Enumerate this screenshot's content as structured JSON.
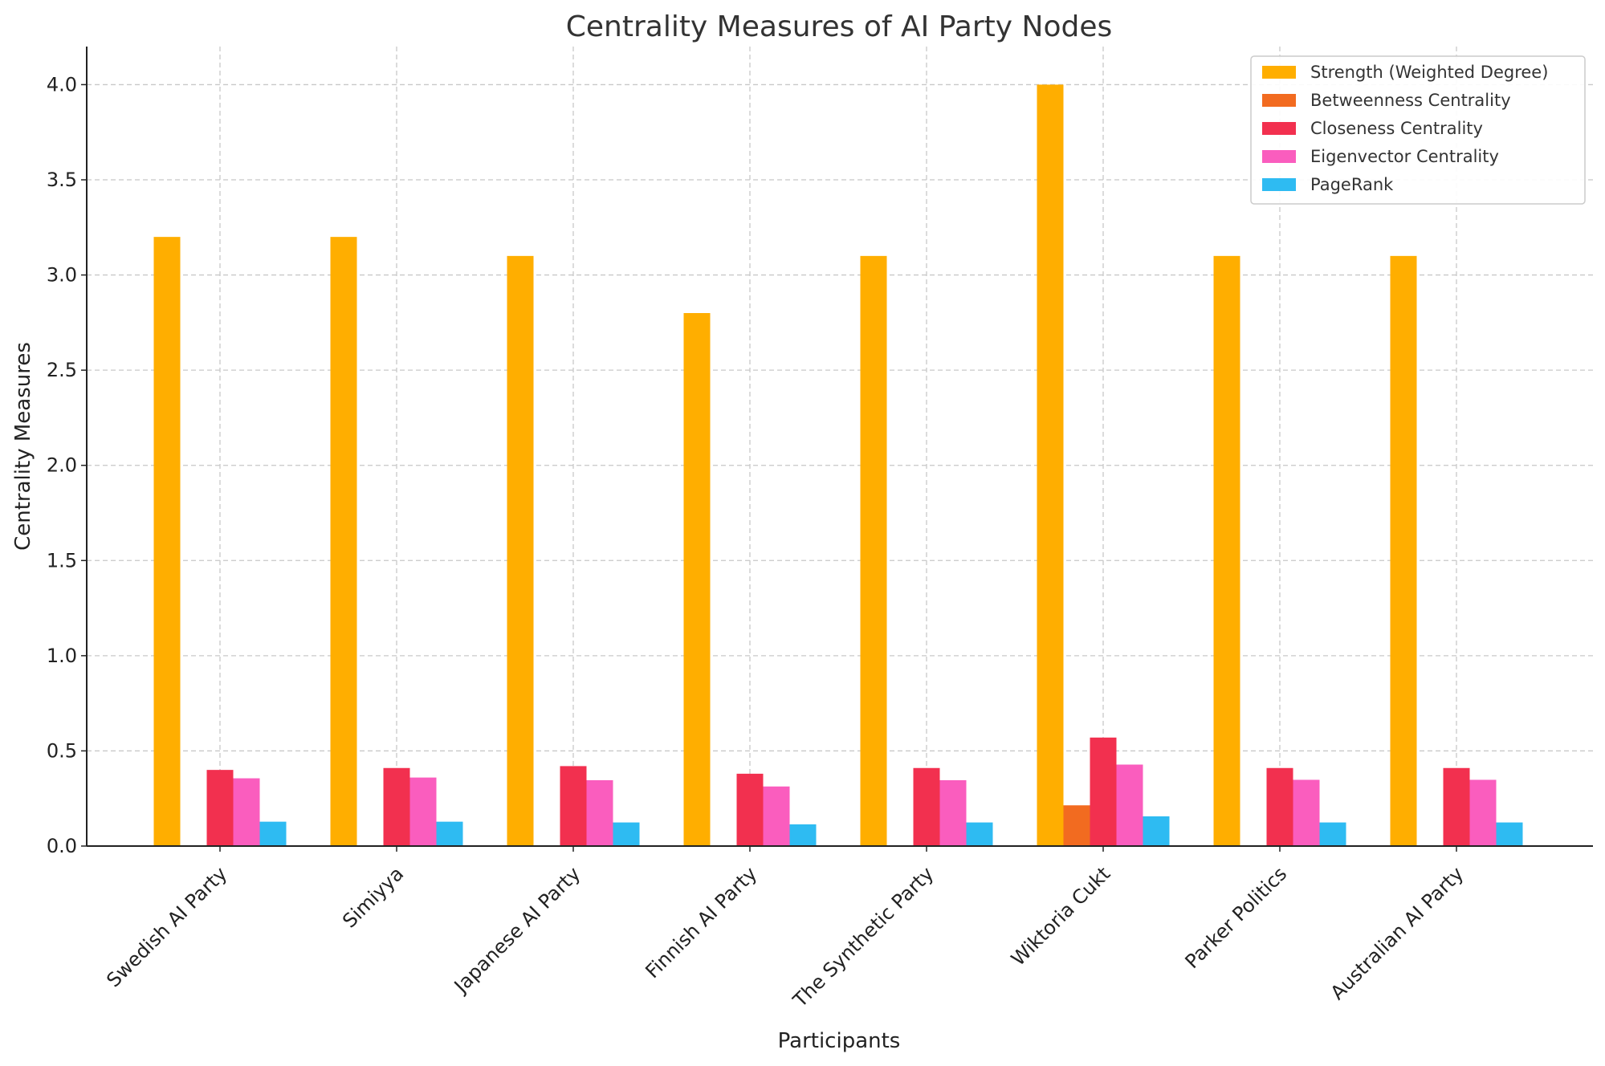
{
  "chart_data": {
    "type": "bar",
    "title": "Centrality Measures of AI Party Nodes",
    "xlabel": "Participants",
    "ylabel": "Centrality Measures",
    "ylim": [
      0,
      4.2
    ],
    "yticks": [
      "0.0",
      "0.5",
      "1.0",
      "1.5",
      "2.0",
      "2.5",
      "3.0",
      "3.5",
      "4.0"
    ],
    "grid": true,
    "legend_position": "top-right",
    "categories": [
      "Swedish AI Party",
      "Simiyya",
      "Japanese AI Party",
      "Finnish AI Party",
      "The Synthetic Party",
      "Wiktoria Cukt",
      "Parker Politics",
      "Australian AI Party"
    ],
    "series": [
      {
        "name": "Strength (Weighted Degree)",
        "color": "#FFAE00",
        "values": [
          3.2,
          3.2,
          3.1,
          2.8,
          3.1,
          4.0,
          3.1,
          3.1
        ]
      },
      {
        "name": "Betweenness Centrality",
        "color": "#F26B20",
        "values": [
          0,
          0,
          0,
          0,
          0,
          0.214,
          0,
          0
        ]
      },
      {
        "name": "Closeness Centrality",
        "color": "#F2304F",
        "values": [
          0.4,
          0.41,
          0.42,
          0.38,
          0.41,
          0.57,
          0.41,
          0.41
        ]
      },
      {
        "name": "Eigenvector Centrality",
        "color": "#FA5DBE",
        "values": [
          0.356,
          0.36,
          0.346,
          0.313,
          0.346,
          0.428,
          0.348,
          0.348
        ]
      },
      {
        "name": "PageRank",
        "color": "#2EBBF2",
        "values": [
          0.128,
          0.128,
          0.124,
          0.114,
          0.124,
          0.156,
          0.124,
          0.124
        ]
      }
    ]
  }
}
